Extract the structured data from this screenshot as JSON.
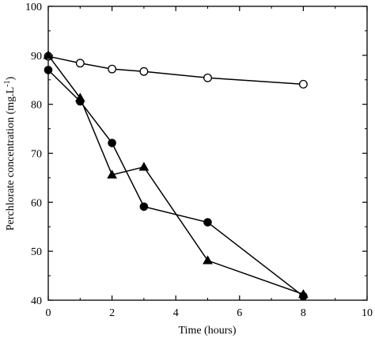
{
  "chart_data": {
    "type": "line",
    "xlabel": "Time (hours)",
    "ylabel_main": "Perchlorate concentration (mg.L",
    "ylabel_sup": "-1",
    "ylabel_close": ")",
    "xlim": [
      0,
      10
    ],
    "ylim": [
      40,
      100
    ],
    "xticks": [
      0,
      2,
      4,
      6,
      8,
      10
    ],
    "yticks": [
      40,
      50,
      60,
      70,
      80,
      90,
      100
    ],
    "grid": false,
    "series": [
      {
        "marker": "open-circle",
        "x": [
          0,
          1,
          2,
          3,
          5,
          8
        ],
        "y": [
          89.8,
          88.4,
          87.2,
          86.7,
          85.4,
          84.1
        ]
      },
      {
        "marker": "filled-circle",
        "x": [
          0,
          1,
          2,
          3,
          5,
          8
        ],
        "y": [
          87.0,
          80.6,
          72.1,
          59.1,
          55.9,
          40.8
        ]
      },
      {
        "marker": "filled-triangle",
        "x": [
          0,
          1,
          2,
          3,
          5,
          8
        ],
        "y": [
          90.0,
          81.3,
          65.6,
          67.2,
          48.1,
          41.2
        ]
      }
    ],
    "colors": {
      "line": "#000000",
      "marker_fill": "#000000",
      "open_fill": "#ffffff"
    }
  }
}
